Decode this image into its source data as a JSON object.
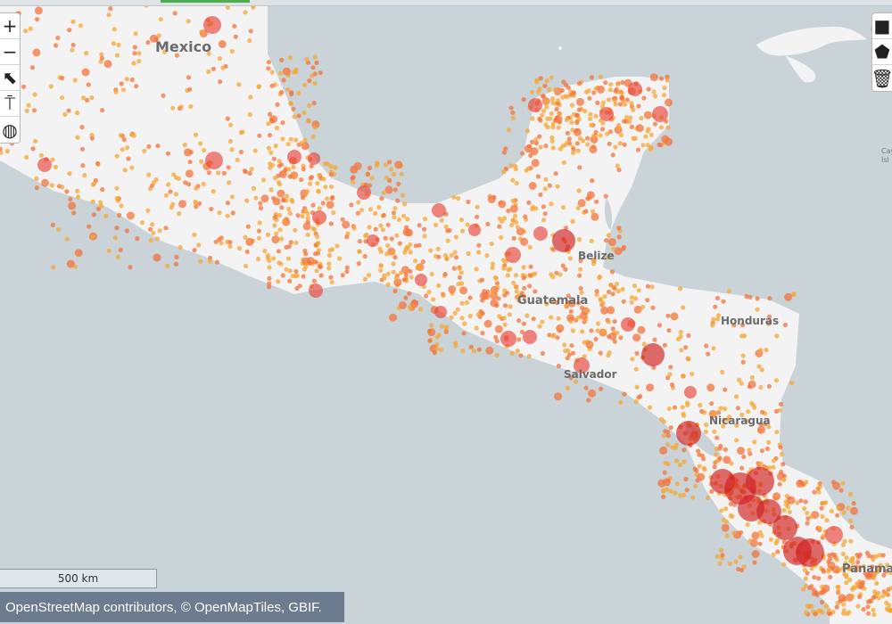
{
  "map": {
    "labels": {
      "mexico": "Mexico",
      "belize": "Belize",
      "guatemala": "Guatemala",
      "salvador": "Salvador",
      "honduras": "Honduras",
      "nicaragua": "Nicaragua",
      "panama": "Panama",
      "cut_off_right": "C",
      "cayman": "Cay",
      "cayman2": "Isl"
    },
    "scale_label": "500 km",
    "attribution": "OpenStreetMap contributors, © OpenMapTiles, GBIF.",
    "colors": {
      "water": "#c9d3d8",
      "land": "#f3f3f3",
      "point_small": "#f7a734",
      "point_mid": "#f4743c",
      "point_large": "#d11f1f"
    }
  },
  "controls_left": [
    {
      "name": "zoom-in-button",
      "icon": "plus-icon",
      "glyph": "+"
    },
    {
      "name": "zoom-out-button",
      "icon": "minus-icon",
      "glyph": "−"
    },
    {
      "name": "select-tool-button",
      "icon": "cursor-select-icon",
      "glyph": "⬉"
    },
    {
      "name": "style-tool-button",
      "icon": "paint-roller-icon",
      "glyph": "⍑"
    },
    {
      "name": "projection-button",
      "icon": "globe-icon",
      "glyph": "◍"
    }
  ],
  "controls_right": [
    {
      "name": "draw-rectangle-button",
      "icon": "square-icon",
      "glyph": "■"
    },
    {
      "name": "draw-polygon-button",
      "icon": "polygon-icon",
      "glyph": "⬟"
    },
    {
      "name": "delete-shape-button",
      "icon": "trash-icon",
      "glyph": "🗑"
    }
  ]
}
